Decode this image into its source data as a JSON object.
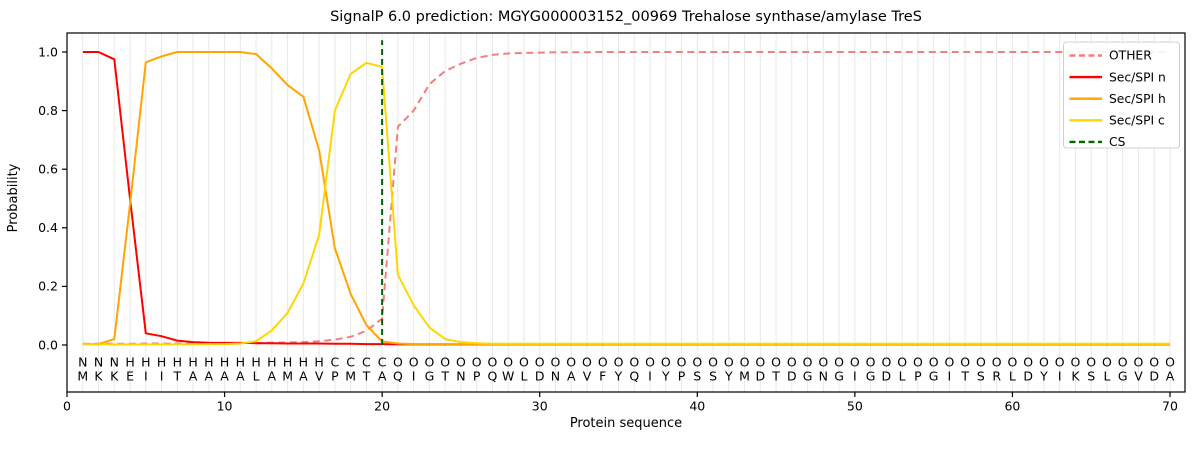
{
  "title": "SignalP 6.0 prediction: MGYG000003152_00969 Trehalose synthase/amylase TreS",
  "axes": {
    "xlabel": "Protein sequence",
    "ylabel": "Probability",
    "x_ticks": [
      "0",
      "10",
      "20",
      "30",
      "40",
      "50",
      "60",
      "70"
    ],
    "y_ticks": [
      "0.0",
      "0.2",
      "0.4",
      "0.6",
      "0.8",
      "1.0"
    ]
  },
  "legend": [
    {
      "label": "OTHER",
      "color": "#f08080",
      "dashed": true
    },
    {
      "label": "Sec/SPI n",
      "color": "#ff0000",
      "dashed": false
    },
    {
      "label": "Sec/SPI h",
      "color": "#ffa500",
      "dashed": false
    },
    {
      "label": "Sec/SPI c",
      "color": "#ffd700",
      "dashed": false
    },
    {
      "label": "CS",
      "color": "#006400",
      "dashed": true
    }
  ],
  "chart_data": {
    "type": "line",
    "xlabel": "Protein sequence",
    "ylabel": "Probability",
    "xlim": [
      0,
      71
    ],
    "ylim": [
      -0.16,
      1.065
    ],
    "grid": "vertical lines at each residue position 1-70",
    "legend_position": "upper right",
    "sequence": "MKKEIITAAAALAMAVPMTAQIGTNPQWLDNAVFYQIYPSSYMDTDGNGIGDLPGITSRLDYIKSLGVDA",
    "region_labels": "NNNHHHHHHHHHHHHHCCCCOOOOOOOOOOOOOOOOOOOOOOOOOOOOOOOOOOOOOOOOOOOOOOOOOO",
    "region_label_colors": {
      "N": "#ff0000",
      "H": "#ffa500",
      "C": "#ffd700",
      "O": "#808080"
    },
    "residue_color": "#1a1a1a",
    "cs_line": {
      "x": 20,
      "color": "#006400",
      "dashed": true,
      "y_from": 0,
      "y_to": 1.04
    },
    "series": [
      {
        "name": "OTHER",
        "color": "#f08080",
        "dashed": true,
        "values": [
          0.004,
          0.004,
          0.004,
          0.004,
          0.005,
          0.005,
          0.005,
          0.005,
          0.006,
          0.006,
          0.007,
          0.007,
          0.008,
          0.009,
          0.01,
          0.013,
          0.018,
          0.028,
          0.048,
          0.09,
          0.745,
          0.8,
          0.89,
          0.935,
          0.96,
          0.98,
          0.99,
          0.995,
          0.997,
          0.998,
          0.999,
          0.999,
          0.999,
          1,
          1,
          1,
          1,
          1,
          1,
          1,
          1,
          1,
          1,
          1,
          1,
          1,
          1,
          1,
          1,
          1,
          1,
          1,
          1,
          1,
          1,
          1,
          1,
          1,
          1,
          1,
          1,
          1,
          1,
          1,
          1,
          1,
          1,
          1,
          1,
          1
        ]
      },
      {
        "name": "Sec/SPI n",
        "color": "#ff0000",
        "dashed": false,
        "values": [
          1,
          1,
          0.975,
          0.5,
          0.04,
          0.03,
          0.015,
          0.01,
          0.008,
          0.007,
          0.007,
          0.006,
          0.006,
          0.005,
          0.005,
          0.005,
          0.004,
          0.004,
          0.003,
          0.003,
          0.002,
          0.002,
          0.002,
          0.002,
          0.002,
          0.002,
          0.002,
          0.002,
          0.002,
          0.002,
          0.002,
          0.002,
          0.002,
          0.002,
          0.002,
          0.002,
          0.002,
          0.002,
          0.002,
          0.002,
          0.002,
          0.002,
          0.002,
          0.002,
          0.002,
          0.002,
          0.002,
          0.002,
          0.002,
          0.002,
          0.002,
          0.002,
          0.002,
          0.002,
          0.002,
          0.002,
          0.002,
          0.002,
          0.002,
          0.002,
          0.002,
          0.002,
          0.002,
          0.002,
          0.002,
          0.002,
          0.002,
          0.002,
          0.002,
          0.002
        ]
      },
      {
        "name": "Sec/SPI h",
        "color": "#ffa500",
        "dashed": false,
        "values": [
          0.003,
          0.003,
          0.02,
          0.48,
          0.965,
          0.985,
          1,
          1,
          1,
          1,
          1,
          0.993,
          0.944,
          0.887,
          0.847,
          0.665,
          0.33,
          0.175,
          0.068,
          0.012,
          0.005,
          0.003,
          0.003,
          0.003,
          0.003,
          0.003,
          0.003,
          0.003,
          0.003,
          0.003,
          0.003,
          0.003,
          0.003,
          0.003,
          0.003,
          0.003,
          0.003,
          0.003,
          0.003,
          0.003,
          0.003,
          0.003,
          0.003,
          0.003,
          0.003,
          0.003,
          0.003,
          0.003,
          0.003,
          0.003,
          0.003,
          0.003,
          0.003,
          0.003,
          0.003,
          0.003,
          0.003,
          0.003,
          0.003,
          0.003,
          0.003,
          0.003,
          0.003,
          0.003,
          0.003,
          0.003,
          0.003,
          0.003,
          0.003,
          0.003
        ]
      },
      {
        "name": "Sec/SPI c",
        "color": "#ffd700",
        "dashed": false,
        "values": [
          0.002,
          0.002,
          0.002,
          0.002,
          0.002,
          0.002,
          0.002,
          0.002,
          0.003,
          0.003,
          0.005,
          0.013,
          0.05,
          0.11,
          0.21,
          0.375,
          0.8,
          0.925,
          0.963,
          0.949,
          0.24,
          0.135,
          0.06,
          0.02,
          0.01,
          0.006,
          0.004,
          0.004,
          0.004,
          0.004,
          0.004,
          0.004,
          0.004,
          0.004,
          0.004,
          0.004,
          0.004,
          0.004,
          0.004,
          0.004,
          0.004,
          0.004,
          0.004,
          0.004,
          0.004,
          0.004,
          0.004,
          0.004,
          0.004,
          0.004,
          0.004,
          0.004,
          0.004,
          0.004,
          0.004,
          0.004,
          0.004,
          0.004,
          0.004,
          0.004,
          0.004,
          0.004,
          0.004,
          0.004,
          0.004,
          0.004,
          0.004,
          0.004,
          0.004,
          0.004
        ]
      }
    ]
  },
  "style_colors": {
    "gridline": "#e8e8e8",
    "frame": "#000000",
    "legend_border": "#d0d0d0"
  }
}
